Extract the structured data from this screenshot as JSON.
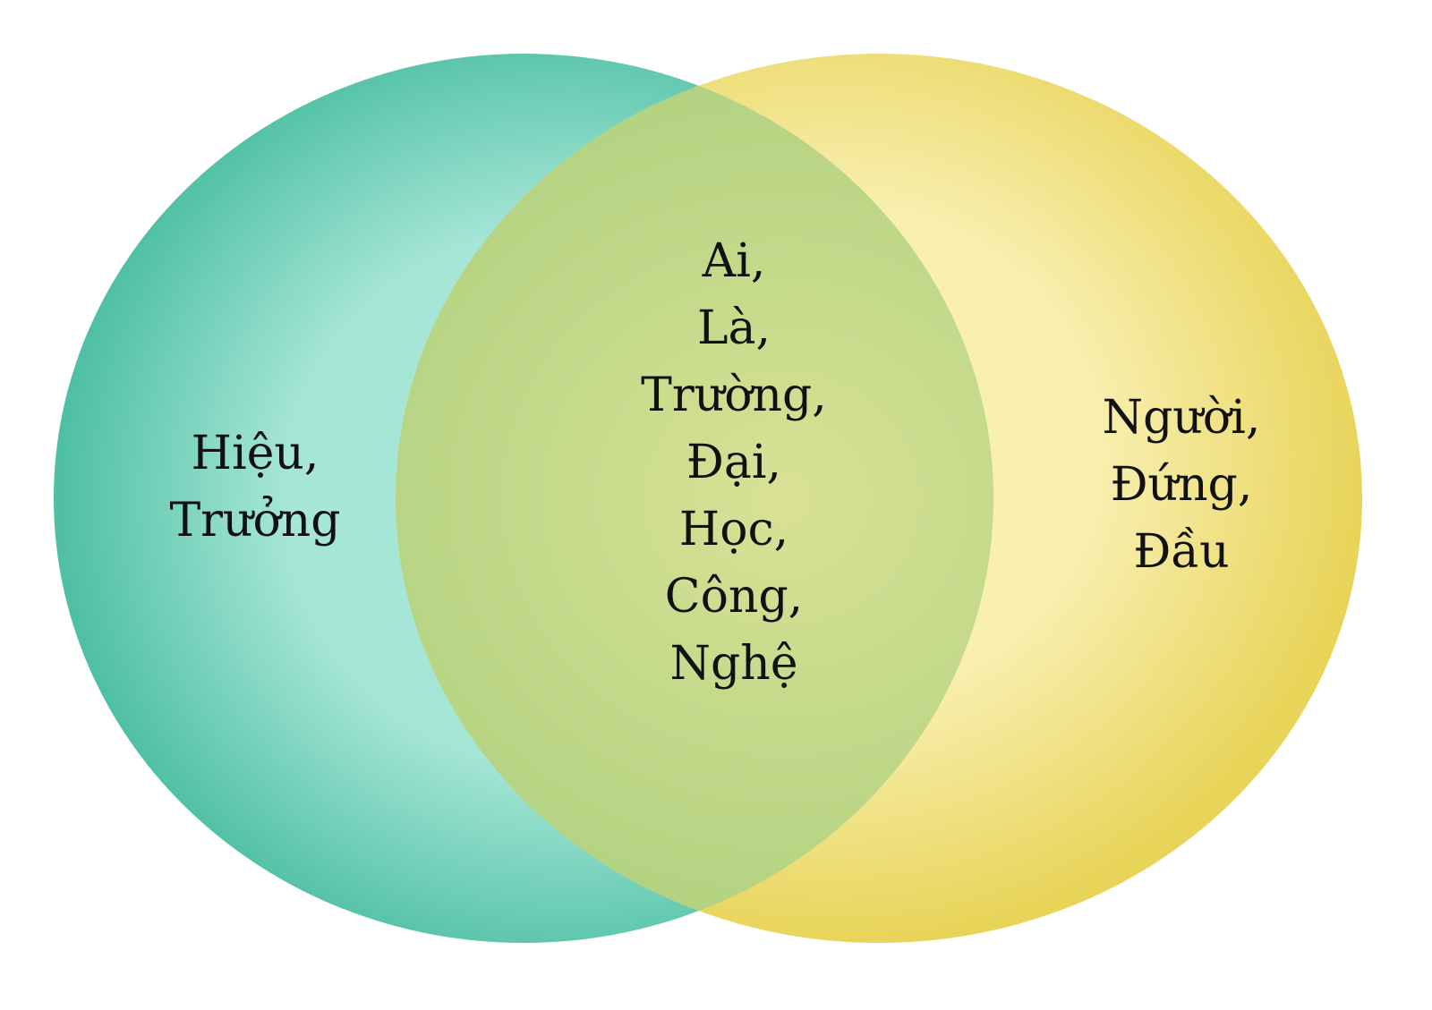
{
  "colors": {
    "left_circle_center": "#a6e6d6",
    "left_circle_edge": "#4dbfa3",
    "right_circle_center": "#f8efb0",
    "right_circle_edge": "#e9d45a",
    "overlap_center": "#d9e196",
    "overlap_edge": "#a8cf7c",
    "text": "#111111"
  },
  "regions": {
    "left_only": [
      "Hiệu,",
      "Trưởng"
    ],
    "intersection": [
      "Ai,",
      "Là,",
      "Trường,",
      "Đại,",
      "Học,",
      "Công,",
      "Nghệ"
    ],
    "right_only": [
      "Người,",
      "Đứng,",
      "Đầu"
    ]
  }
}
